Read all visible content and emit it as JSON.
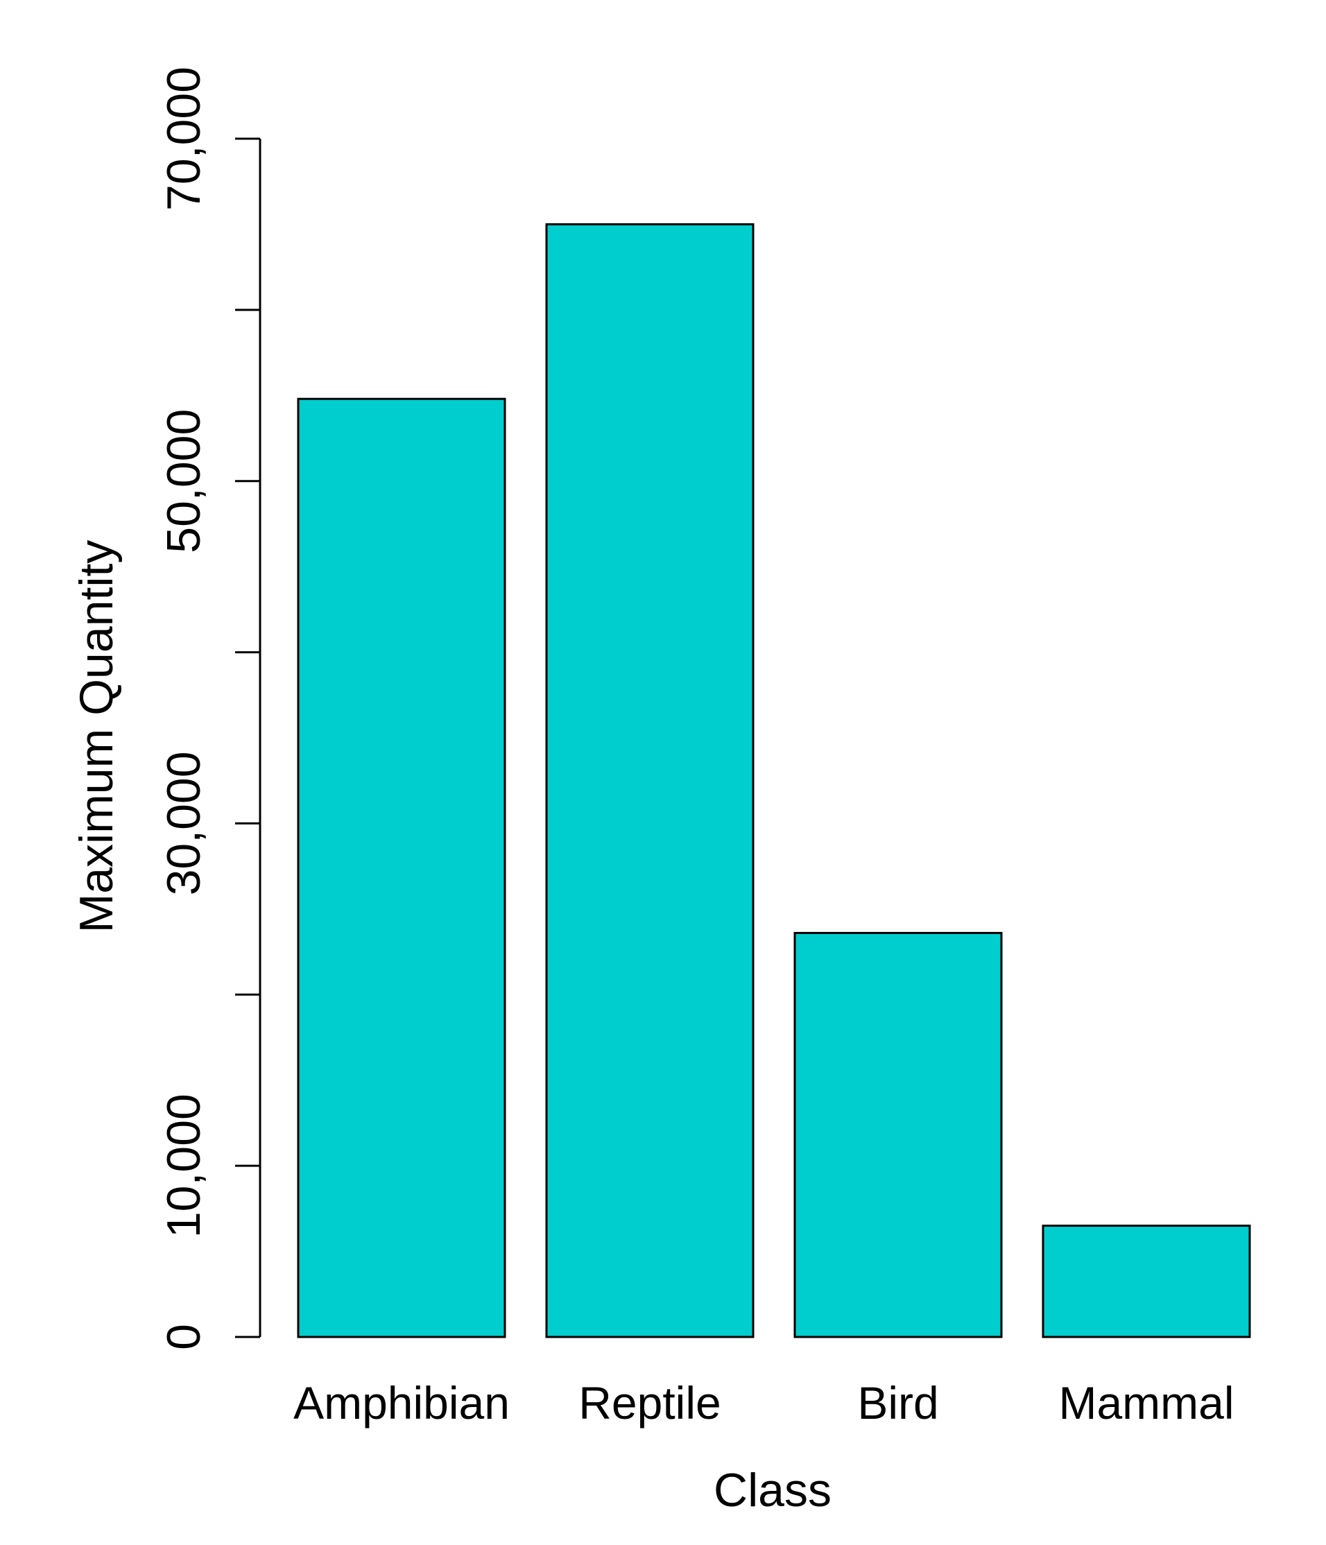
{
  "chart_data": {
    "type": "bar",
    "title": "",
    "xlabel": "Class",
    "ylabel": "Maximum Quantity",
    "categories": [
      "Amphibian",
      "Reptile",
      "Bird",
      "Mammal"
    ],
    "values": [
      54800,
      65000,
      23600,
      6500
    ],
    "ylim": [
      0,
      70000
    ],
    "yticks": [
      0,
      10000,
      20000,
      30000,
      40000,
      50000,
      60000,
      70000
    ],
    "ytick_labels": [
      "0",
      "10,000",
      "",
      "30,000",
      "",
      "50,000",
      "",
      "70,000"
    ],
    "grid": false,
    "legend": "none",
    "colors": {
      "bar_fill": "#00CDCD",
      "bar_stroke": "#000000",
      "axis": "#000000",
      "text": "#000000",
      "background": "#FFFFFF"
    }
  }
}
